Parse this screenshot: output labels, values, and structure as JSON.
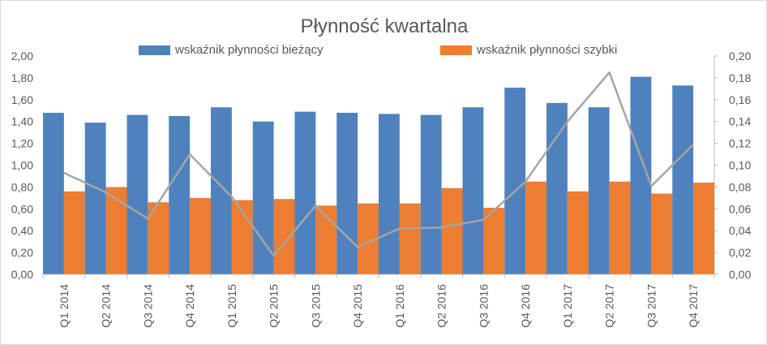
{
  "chart_data": {
    "type": "bar",
    "title": "Płynność kwartalna",
    "categories": [
      "Q1 2014",
      "Q2 2014",
      "Q3 2014",
      "Q4 2014",
      "Q1 2015",
      "Q2 2015",
      "Q3 2015",
      "Q4 2015",
      "Q1 2016",
      "Q2 2016",
      "Q3 2016",
      "Q4 2016",
      "Q1 2017",
      "Q2 2017",
      "Q3 2017",
      "Q4 2017"
    ],
    "series": [
      {
        "name": "wskaźnik płynności bieżący",
        "type": "bar",
        "axis": "left",
        "color": "#4f81bd",
        "values": [
          1.48,
          1.39,
          1.46,
          1.45,
          1.53,
          1.4,
          1.49,
          1.48,
          1.47,
          1.46,
          1.53,
          1.71,
          1.57,
          1.53,
          1.81,
          1.73
        ]
      },
      {
        "name": "wskaźnik płynności szybki",
        "type": "bar",
        "axis": "left",
        "color": "#ed7d31",
        "values": [
          0.76,
          0.8,
          0.66,
          0.7,
          0.68,
          0.69,
          0.63,
          0.65,
          0.65,
          0.79,
          0.61,
          0.85,
          0.76,
          0.85,
          0.74,
          0.84
        ]
      },
      {
        "type": "line",
        "axis": "right",
        "color": "#a5a5a5",
        "values": [
          0.093,
          0.075,
          0.051,
          0.11,
          0.071,
          0.017,
          0.063,
          0.025,
          0.042,
          0.043,
          0.05,
          0.085,
          0.14,
          0.185,
          0.081,
          0.119
        ]
      }
    ],
    "y_left": {
      "ylim": [
        0,
        2.0
      ],
      "ticks": [
        "0,00",
        "0,20",
        "0,40",
        "0,60",
        "0,80",
        "1,00",
        "1,20",
        "1,40",
        "1,60",
        "1,80",
        "2,00"
      ]
    },
    "y_right": {
      "ylim": [
        0,
        0.2
      ],
      "ticks": [
        "0,00",
        "0,02",
        "0,04",
        "0,06",
        "0,08",
        "0,10",
        "0,12",
        "0,14",
        "0,16",
        "0,18",
        "0,20"
      ]
    },
    "grid": false,
    "legend": "top"
  }
}
